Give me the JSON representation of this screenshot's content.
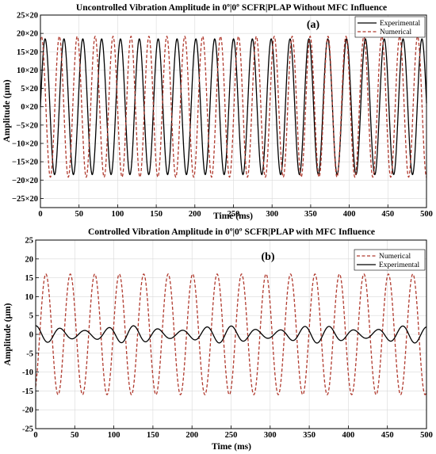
{
  "chart_data": [
    {
      "type": "line",
      "title": "Uncontrolled Vibration Amplitude in 0º|0º SCFR|PLAP  Without MFC Influence",
      "panel_label": "(a)",
      "xlabel": "Time (ms)",
      "ylabel": "Amplitude (µm)",
      "xlim": [
        0,
        500
      ],
      "ylim": [
        -27.5,
        25
      ],
      "xticks": [
        "0",
        "50",
        "100",
        "150",
        "200",
        "250",
        "300",
        "350",
        "400",
        "450",
        "500"
      ],
      "yticks": [
        "−25×20",
        "−20×20",
        "−15×20",
        "−10×20",
        "−5×20",
        "0×20",
        "5×20",
        "10×20",
        "15×20",
        "20×20",
        "25×20"
      ],
      "grid": true,
      "legend_position": "top-right",
      "series": [
        {
          "name": "Experimental",
          "color": "#000000",
          "style": "solid",
          "amplitude": 18.5,
          "period_ms": 24.4,
          "phase_deg": 0,
          "points": 1500
        },
        {
          "name": "Numerical",
          "color": "#b03a2e",
          "style": "dashed",
          "amplitude": 19.2,
          "period_ms": 23.2,
          "phase_deg": 70,
          "points": 1500
        }
      ]
    },
    {
      "type": "line",
      "title": "Controlled Vibration Amplitude in 0º|0º SCFR|PLAP  with MFC Influence",
      "panel_label": "(b)",
      "xlabel": "Time (ms)",
      "ylabel": "Amplitude (μm)",
      "xlim": [
        0,
        500
      ],
      "ylim": [
        -25,
        25
      ],
      "xticks": [
        "0",
        "50",
        "100",
        "150",
        "200",
        "250",
        "300",
        "350",
        "400",
        "450",
        "500"
      ],
      "yticks": [
        "-25",
        "-20",
        "-15",
        "-10",
        "-5",
        "0",
        "5",
        "10",
        "15",
        "20",
        "25"
      ],
      "grid": true,
      "legend_position": "top-right",
      "series": [
        {
          "name": "Numerical",
          "color": "#b03a2e",
          "style": "dashed",
          "amplitude": 16,
          "period_ms": 31.3,
          "phase_deg": -60,
          "points": 1500
        },
        {
          "name": "Experimental",
          "color": "#000000",
          "style": "solid",
          "amplitude": 2.3,
          "period_ms": 31.3,
          "phase_deg": 90,
          "beat_period_ms": 120,
          "beat_depth": 0.55,
          "points": 1500
        }
      ]
    }
  ]
}
